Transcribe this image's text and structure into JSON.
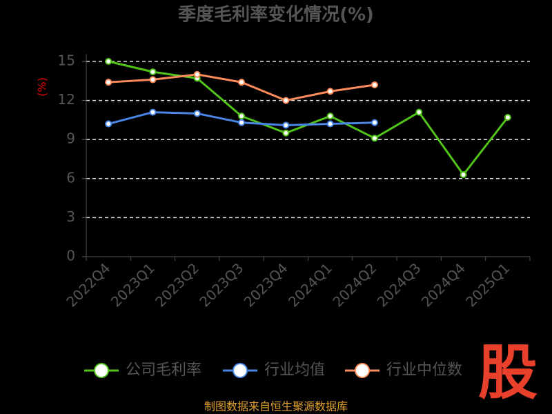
{
  "chart_data": {
    "type": "line",
    "title": "季度毛利率变化情况(%)",
    "y_label": "(%)",
    "categories": [
      "2022Q4",
      "2023Q1",
      "2023Q2",
      "2023Q3",
      "2023Q4",
      "2024Q1",
      "2024Q2",
      "2024Q3",
      "2024Q4",
      "2025Q1"
    ],
    "series": [
      {
        "name": "公司毛利率",
        "color": "#52c41a",
        "values": [
          15.0,
          14.2,
          13.7,
          10.8,
          9.5,
          10.8,
          9.1,
          11.1,
          6.3,
          10.7
        ]
      },
      {
        "name": "行业均值",
        "color": "#4a86e8",
        "values": [
          10.2,
          11.1,
          11.0,
          10.3,
          10.1,
          10.2,
          10.3,
          null,
          null,
          null
        ]
      },
      {
        "name": "行业中位数",
        "color": "#ff8c5a",
        "values": [
          13.4,
          13.6,
          14.0,
          13.4,
          12.0,
          12.7,
          13.2,
          null,
          null,
          null
        ]
      }
    ],
    "ylim": [
      0,
      15
    ],
    "yticks": [
      0,
      3,
      6,
      9,
      12,
      15
    ],
    "grid": true,
    "legend": "bottom",
    "source": "制图数据来自恒生聚源数据库",
    "logo": "股"
  }
}
